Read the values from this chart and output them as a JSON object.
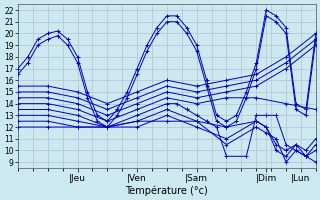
{
  "bg_color": "#cce8f0",
  "grid_color": "#aabbc8",
  "line_color": "#0000bb",
  "marker_color": "#0000cc",
  "xlabel": "Température (°c)",
  "day_labels": [
    "|Jeu",
    "|Ven",
    "|Sam",
    "|Dim",
    "|Lun"
  ],
  "ylim": [
    8.5,
    22.5
  ],
  "yticks": [
    9,
    10,
    11,
    12,
    13,
    14,
    15,
    16,
    17,
    18,
    19,
    20,
    21,
    22
  ],
  "xlim": [
    0,
    120
  ],
  "series_traces": [
    {
      "x": [
        0,
        4,
        8,
        12,
        16,
        20,
        24,
        28,
        32,
        36,
        40,
        44,
        48,
        52,
        56,
        60,
        64,
        68,
        72,
        76,
        80,
        84,
        88,
        92,
        96,
        100,
        104,
        108,
        112,
        116,
        120
      ],
      "y": [
        17,
        18,
        19.5,
        20,
        20.2,
        19.5,
        18,
        15,
        13,
        12.5,
        13.5,
        15,
        17,
        19,
        20.5,
        21.5,
        21.5,
        20.5,
        19,
        16,
        13,
        12.5,
        13,
        15,
        17.5,
        22,
        21.5,
        20.5,
        14,
        13.5,
        20
      ]
    },
    {
      "x": [
        0,
        4,
        8,
        12,
        16,
        20,
        24,
        28,
        32,
        36,
        40,
        44,
        48,
        52,
        56,
        60,
        64,
        68,
        72,
        76,
        80,
        84,
        88,
        92,
        96,
        100,
        104,
        108,
        112,
        116,
        120
      ],
      "y": [
        16.5,
        17.5,
        19,
        19.5,
        19.8,
        19,
        17.5,
        14.5,
        12.5,
        12,
        13,
        14.5,
        16.5,
        18.5,
        20,
        21,
        21,
        20,
        18.5,
        15.5,
        12.5,
        12,
        12.5,
        14.5,
        17,
        21.5,
        21,
        20,
        13.5,
        13,
        19.5
      ]
    },
    {
      "x": [
        0,
        12,
        24,
        36,
        48,
        60,
        72,
        84,
        96,
        108,
        120
      ],
      "y": [
        15.5,
        15.5,
        15,
        14,
        15,
        16,
        15.5,
        16,
        16.5,
        18,
        20
      ]
    },
    {
      "x": [
        0,
        12,
        24,
        36,
        48,
        60,
        72,
        84,
        96,
        108,
        120
      ],
      "y": [
        15,
        15,
        14.5,
        13.5,
        14.5,
        15.5,
        15,
        15.5,
        16,
        17.5,
        19.5
      ]
    },
    {
      "x": [
        0,
        12,
        24,
        36,
        48,
        60,
        72,
        84,
        96,
        108,
        120
      ],
      "y": [
        14.5,
        14.5,
        14,
        13,
        14,
        15,
        14.5,
        15,
        15.5,
        17,
        19
      ]
    },
    {
      "x": [
        0,
        12,
        24,
        36,
        48,
        60,
        72,
        84,
        96,
        108,
        120
      ],
      "y": [
        14,
        14,
        13.5,
        12.5,
        13.5,
        14.5,
        14,
        14.5,
        14.5,
        14,
        13.5
      ]
    },
    {
      "x": [
        0,
        12,
        24,
        36,
        48,
        60,
        64,
        68,
        72,
        76,
        80,
        84,
        92,
        96,
        100,
        104,
        108,
        112,
        116,
        120
      ],
      "y": [
        13.5,
        13.5,
        13,
        12,
        13,
        14,
        14,
        13.5,
        13,
        12.5,
        12,
        9.5,
        9.5,
        13,
        13,
        13,
        10.5,
        10,
        9.5,
        9
      ]
    },
    {
      "x": [
        0,
        12,
        24,
        36,
        48,
        60,
        72,
        84,
        96,
        100,
        104,
        108,
        112,
        116,
        120
      ],
      "y": [
        13,
        13,
        12.5,
        12,
        12.5,
        13.5,
        12.5,
        12,
        12.5,
        12,
        10.5,
        10,
        10.5,
        10,
        11
      ]
    },
    {
      "x": [
        0,
        12,
        24,
        36,
        48,
        60,
        72,
        84,
        96,
        100,
        104,
        108,
        112,
        116,
        120
      ],
      "y": [
        12.5,
        12.5,
        12,
        12,
        12,
        13,
        12,
        11,
        12.5,
        12,
        10,
        9.5,
        10.5,
        9.5,
        10.5
      ]
    },
    {
      "x": [
        0,
        12,
        24,
        36,
        48,
        60,
        72,
        84,
        96,
        100,
        104,
        108,
        112,
        116,
        120
      ],
      "y": [
        12,
        12,
        12,
        12,
        12.5,
        12.5,
        12.5,
        10.5,
        12,
        11.5,
        11,
        9,
        10,
        9.5,
        10
      ]
    }
  ],
  "day_x_positions": [
    24,
    48,
    72,
    100,
    114
  ]
}
